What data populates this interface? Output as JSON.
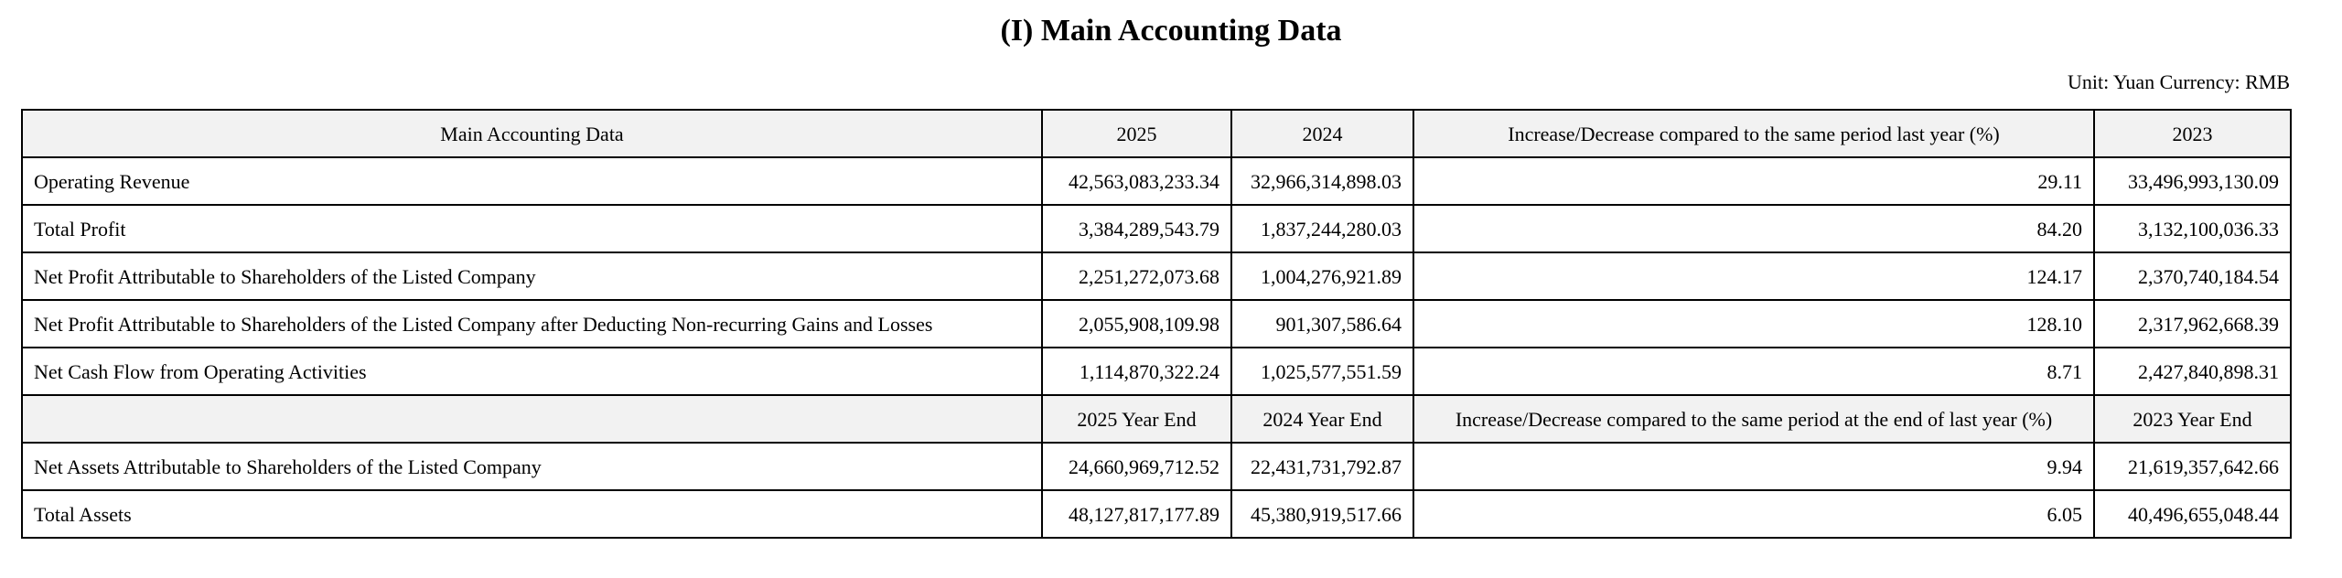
{
  "title": "(I) Main Accounting Data",
  "unit_note": "Unit: Yuan Currency: RMB",
  "colors": {
    "header_bg": "#f2f2f2",
    "border": "#000000",
    "text": "#000000",
    "page_bg": "#ffffff"
  },
  "table": {
    "header1": [
      "Main Accounting Data",
      "2025",
      "2024",
      "Increase/Decrease compared to the same period last year (%)",
      "2023"
    ],
    "rows_period": [
      {
        "label": "Operating Revenue",
        "v2025": "42,563,083,233.34",
        "v2024": "32,966,314,898.03",
        "change": "29.11",
        "v2023": "33,496,993,130.09"
      },
      {
        "label": "Total Profit",
        "v2025": "3,384,289,543.79",
        "v2024": "1,837,244,280.03",
        "change": "84.20",
        "v2023": "3,132,100,036.33"
      },
      {
        "label": "Net Profit Attributable to Shareholders of the Listed Company",
        "v2025": "2,251,272,073.68",
        "v2024": "1,004,276,921.89",
        "change": "124.17",
        "v2023": "2,370,740,184.54"
      },
      {
        "label": "Net Profit Attributable to Shareholders of the Listed Company after Deducting Non-recurring Gains and Losses",
        "v2025": "2,055,908,109.98",
        "v2024": "901,307,586.64",
        "change": "128.10",
        "v2023": "2,317,962,668.39"
      },
      {
        "label": "Net Cash Flow from Operating Activities",
        "v2025": "1,114,870,322.24",
        "v2024": "1,025,577,551.59",
        "change": "8.71",
        "v2023": "2,427,840,898.31"
      }
    ],
    "header2": [
      "",
      "2025 Year End",
      "2024 Year End",
      "Increase/Decrease compared to the same period at the end of last year (%)",
      "2023 Year End"
    ],
    "rows_yearend": [
      {
        "label": "Net Assets Attributable to Shareholders of the Listed Company",
        "v2025": "24,660,969,712.52",
        "v2024": "22,431,731,792.87",
        "change": "9.94",
        "v2023": "21,619,357,642.66"
      },
      {
        "label": "Total Assets",
        "v2025": "48,127,817,177.89",
        "v2024": "45,380,919,517.66",
        "change": "6.05",
        "v2023": "40,496,655,048.44"
      }
    ]
  }
}
